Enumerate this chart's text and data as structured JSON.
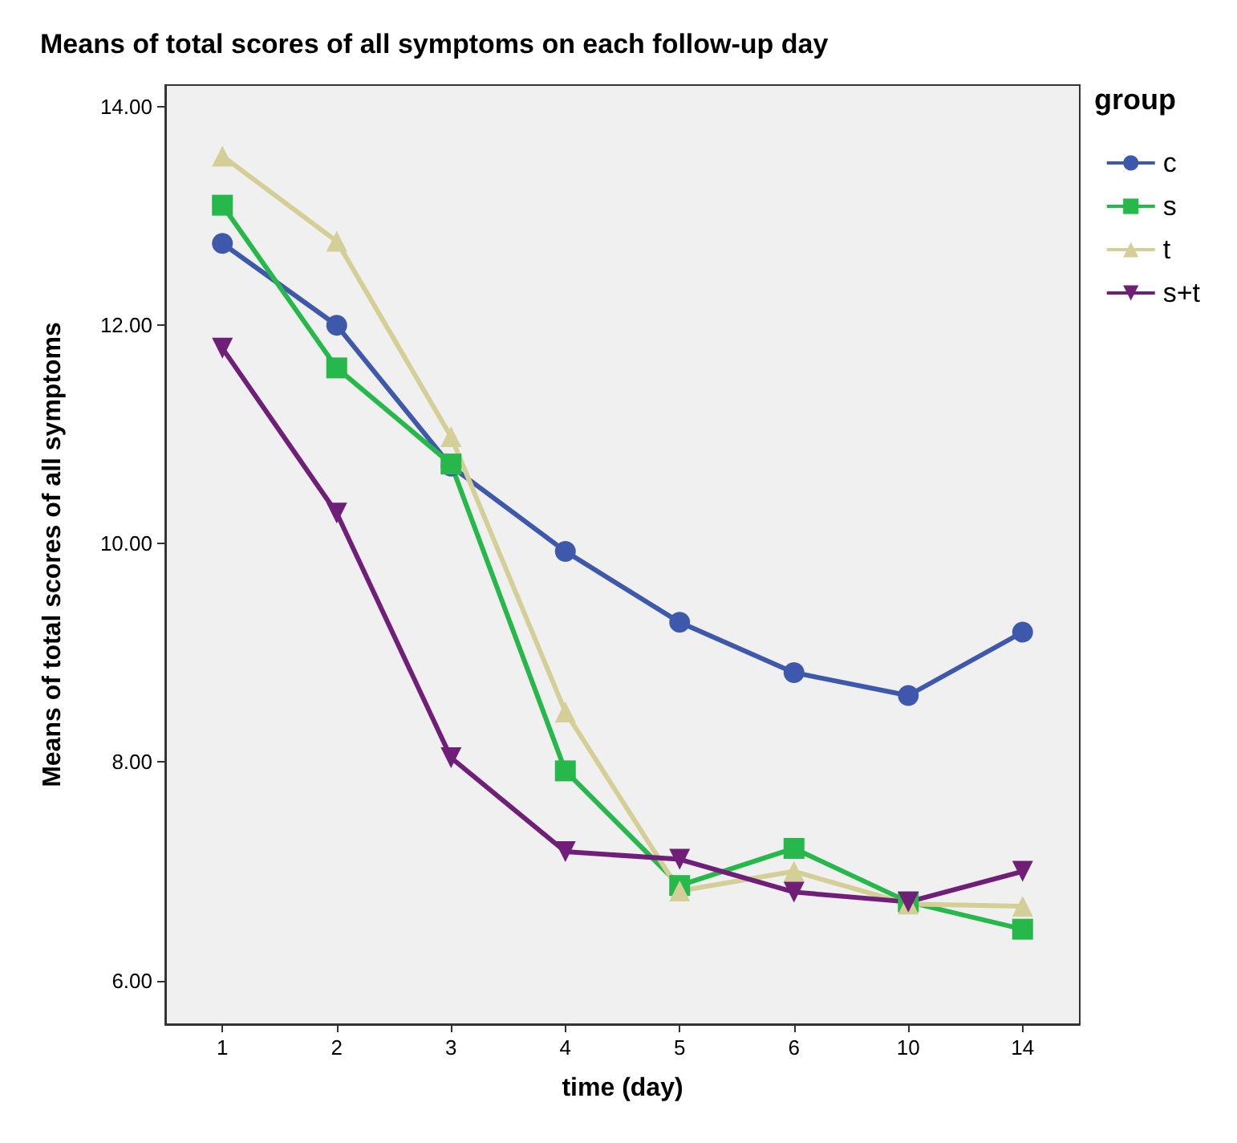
{
  "chart_data": {
    "type": "line",
    "title": "Means of total scores of all symptoms on each follow-up day",
    "xlabel": "time (day)",
    "ylabel": "Means of total scores of all symptoms",
    "legend_title": "group",
    "categories": [
      "1",
      "2",
      "3",
      "4",
      "5",
      "6",
      "10",
      "14"
    ],
    "series": [
      {
        "name": "c",
        "color": "#3e58ac",
        "marker": "circle",
        "values": [
          12.75,
          12.0,
          10.71,
          9.93,
          9.28,
          8.82,
          8.61,
          9.19
        ]
      },
      {
        "name": "s",
        "color": "#26b84a",
        "marker": "square",
        "values": [
          13.1,
          11.61,
          10.73,
          7.92,
          6.87,
          7.21,
          6.72,
          6.47
        ]
      },
      {
        "name": "t",
        "color": "#d4cf97",
        "marker": "triangle",
        "values": [
          13.55,
          12.77,
          10.98,
          8.46,
          6.82,
          7.0,
          6.7,
          6.68
        ]
      },
      {
        "name": "s+t",
        "color": "#701f78",
        "marker": "triangle-down",
        "values": [
          11.79,
          10.28,
          8.04,
          7.18,
          7.11,
          6.81,
          6.72,
          7.0
        ]
      }
    ],
    "ylim": [
      5.6,
      14.2
    ],
    "yticks": [
      {
        "value": 6,
        "label": "6.00"
      },
      {
        "value": 8,
        "label": "8.00"
      },
      {
        "value": 10,
        "label": "10.00"
      },
      {
        "value": 12,
        "label": "12.00"
      },
      {
        "value": 14,
        "label": "14.00"
      }
    ],
    "grid": false,
    "legend": "right",
    "line_style": "solid"
  }
}
